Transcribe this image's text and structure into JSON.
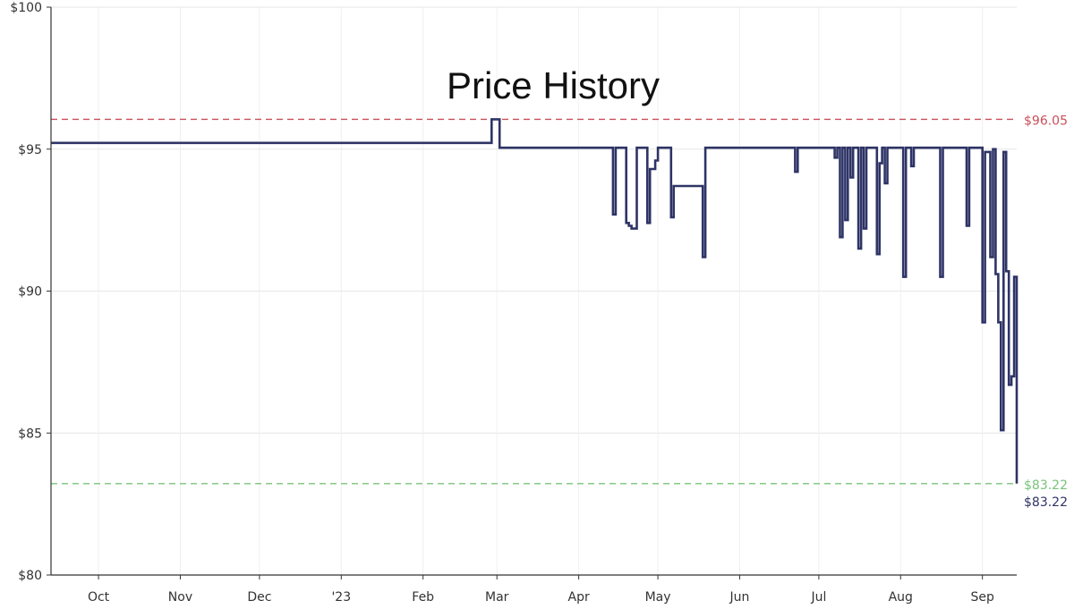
{
  "chart_data": {
    "type": "line",
    "title": "Price History",
    "xlabel": "",
    "ylabel": "",
    "ylim": [
      80,
      100
    ],
    "xlim": [
      "2022-09-13",
      "2023-09-14"
    ],
    "y_ticks": [
      "$80",
      "$85",
      "$90",
      "$95",
      "$100"
    ],
    "y_tick_values": [
      80,
      85,
      90,
      95,
      100
    ],
    "x_ticks": [
      "Oct",
      "Nov",
      "Dec",
      "'23",
      "Feb",
      "Mar",
      "Apr",
      "May",
      "Jun",
      "Jul",
      "Aug",
      "Sep"
    ],
    "x_tick_dates": [
      "2022-10-01",
      "2022-11-01",
      "2022-12-01",
      "2023-01-01",
      "2023-02-01",
      "2023-03-01",
      "2023-04-01",
      "2023-05-01",
      "2023-06-01",
      "2023-07-01",
      "2023-08-01",
      "2023-09-01"
    ],
    "grid": true,
    "series": [
      {
        "color": "#2e3466",
        "step": true,
        "points": [
          [
            "2022-09-13",
            95.22
          ],
          [
            "2023-02-26",
            95.22
          ],
          [
            "2023-02-27",
            96.05
          ],
          [
            "2023-03-02",
            95.05
          ],
          [
            "2023-04-13",
            95.05
          ],
          [
            "2023-04-14",
            92.7
          ],
          [
            "2023-04-15",
            95.05
          ],
          [
            "2023-04-18",
            95.05
          ],
          [
            "2023-04-19",
            92.4
          ],
          [
            "2023-04-20",
            92.3
          ],
          [
            "2023-04-21",
            92.2
          ],
          [
            "2023-04-23",
            95.05
          ],
          [
            "2023-04-26",
            95.05
          ],
          [
            "2023-04-27",
            92.4
          ],
          [
            "2023-04-28",
            94.3
          ],
          [
            "2023-04-29",
            94.3
          ],
          [
            "2023-04-30",
            94.6
          ],
          [
            "2023-05-01",
            95.05
          ],
          [
            "2023-05-05",
            95.05
          ],
          [
            "2023-05-06",
            92.6
          ],
          [
            "2023-05-07",
            93.7
          ],
          [
            "2023-05-17",
            93.7
          ],
          [
            "2023-05-18",
            91.2
          ],
          [
            "2023-05-19",
            95.05
          ],
          [
            "2023-06-21",
            95.05
          ],
          [
            "2023-06-22",
            94.2
          ],
          [
            "2023-06-23",
            95.05
          ],
          [
            "2023-07-06",
            95.05
          ],
          [
            "2023-07-07",
            94.7
          ],
          [
            "2023-07-08",
            95.05
          ],
          [
            "2023-07-09",
            91.9
          ],
          [
            "2023-07-10",
            95.05
          ],
          [
            "2023-07-11",
            92.5
          ],
          [
            "2023-07-12",
            95.05
          ],
          [
            "2023-07-13",
            94.0
          ],
          [
            "2023-07-14",
            95.05
          ],
          [
            "2023-07-16",
            91.5
          ],
          [
            "2023-07-17",
            95.05
          ],
          [
            "2023-07-18",
            92.2
          ],
          [
            "2023-07-19",
            95.05
          ],
          [
            "2023-07-22",
            95.05
          ],
          [
            "2023-07-23",
            91.3
          ],
          [
            "2023-07-24",
            94.5
          ],
          [
            "2023-07-25",
            95.05
          ],
          [
            "2023-07-26",
            93.8
          ],
          [
            "2023-07-27",
            95.05
          ],
          [
            "2023-08-01",
            95.05
          ],
          [
            "2023-08-02",
            90.5
          ],
          [
            "2023-08-03",
            95.05
          ],
          [
            "2023-08-05",
            94.4
          ],
          [
            "2023-08-06",
            95.05
          ],
          [
            "2023-08-15",
            95.05
          ],
          [
            "2023-08-16",
            90.5
          ],
          [
            "2023-08-17",
            95.05
          ],
          [
            "2023-08-25",
            95.05
          ],
          [
            "2023-08-26",
            92.3
          ],
          [
            "2023-08-27",
            95.05
          ],
          [
            "2023-08-31",
            95.05
          ],
          [
            "2023-09-01",
            88.9
          ],
          [
            "2023-09-02",
            94.9
          ],
          [
            "2023-09-03",
            94.9
          ],
          [
            "2023-09-04",
            91.2
          ],
          [
            "2023-09-05",
            95.0
          ],
          [
            "2023-09-06",
            90.6
          ],
          [
            "2023-09-07",
            88.9
          ],
          [
            "2023-09-08",
            85.1
          ],
          [
            "2023-09-09",
            94.9
          ],
          [
            "2023-09-10",
            90.7
          ],
          [
            "2023-09-11",
            86.7
          ],
          [
            "2023-09-12",
            87.0
          ],
          [
            "2023-09-13",
            90.5
          ],
          [
            "2023-09-14",
            83.22
          ]
        ]
      }
    ],
    "reference_lines": [
      {
        "kind": "highest",
        "value": 96.05,
        "label": "$96.05",
        "color": "#c9505a"
      },
      {
        "kind": "lowest",
        "value": 83.22,
        "label": "$83.22",
        "color": "#79c279"
      }
    ],
    "current_price_label": "$83.22",
    "current_price_color": "#2e3466"
  }
}
